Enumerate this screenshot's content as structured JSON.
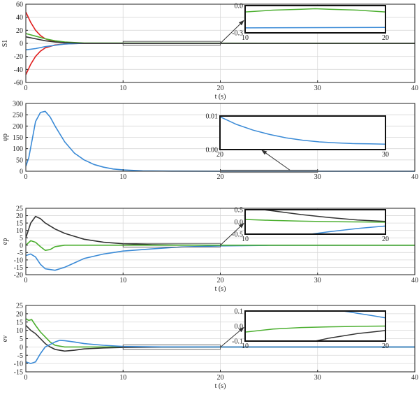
{
  "chart_data": [
    {
      "type": "line",
      "ylabel": "S1",
      "xlabel": "t (s)",
      "xlim": [
        0,
        40
      ],
      "ylim": [
        -60,
        60
      ],
      "xticks": [
        0,
        10,
        20,
        30,
        40
      ],
      "yticks": [
        -60,
        -40,
        -20,
        0,
        20,
        40,
        60
      ],
      "grid": true,
      "series": [
        {
          "color": "#e02020",
          "x": [
            0,
            0.5,
            1,
            1.5,
            2,
            3,
            4,
            5,
            6,
            40
          ],
          "y": [
            48,
            32,
            20,
            12,
            7,
            2.5,
            1,
            0.3,
            0,
            0
          ]
        },
        {
          "color": "#e02020",
          "x": [
            0,
            0.5,
            1,
            1.5,
            2,
            3,
            4,
            5,
            6,
            40
          ],
          "y": [
            -48,
            -32,
            -20,
            -12,
            -7,
            -2.5,
            -1,
            -0.3,
            0,
            0
          ]
        },
        {
          "color": "#3a8ad6",
          "x": [
            0,
            1,
            2,
            3,
            4,
            6,
            40
          ],
          "y": [
            -10,
            -8,
            -5,
            -3,
            -1,
            0,
            0
          ]
        },
        {
          "color": "#4caf30",
          "x": [
            0,
            1,
            2,
            3,
            4,
            6,
            40
          ],
          "y": [
            15,
            11,
            7,
            4,
            2,
            0.5,
            0
          ]
        },
        {
          "color": "#333333",
          "x": [
            0,
            1,
            2,
            3,
            4,
            6,
            40
          ],
          "y": [
            10,
            7,
            4,
            2,
            1,
            0,
            0
          ]
        }
      ],
      "inset": {
        "xrange": [
          10,
          20
        ],
        "yrange": [
          -0.3,
          0.0
        ],
        "xticks": [
          10,
          20
        ],
        "yticks": [
          0.0,
          -0.3
        ],
        "series": [
          {
            "color": "#4caf30",
            "x": [
              10,
              12,
              14,
              15,
              16,
              18,
              20
            ],
            "y": [
              -0.07,
              -0.05,
              -0.04,
              -0.035,
              -0.04,
              -0.05,
              -0.07
            ]
          },
          {
            "color": "#3a8ad6",
            "x": [
              10,
              20
            ],
            "y": [
              -0.245,
              -0.24
            ]
          }
        ]
      }
    },
    {
      "type": "line",
      "ylabel": "φp",
      "xlabel": "",
      "xlim": [
        0,
        40
      ],
      "ylim": [
        0,
        300
      ],
      "xticks": [
        0,
        10,
        20,
        30,
        40
      ],
      "yticks": [
        0,
        50,
        100,
        150,
        200,
        250,
        300
      ],
      "grid": true,
      "series": [
        {
          "color": "#3a8ad6",
          "x": [
            0,
            0.3,
            0.7,
            1,
            1.5,
            2,
            2.5,
            3,
            4,
            5,
            6,
            7,
            8,
            9,
            10,
            12,
            15,
            20,
            40
          ],
          "y": [
            22,
            60,
            150,
            220,
            260,
            265,
            240,
            200,
            130,
            80,
            50,
            30,
            18,
            10,
            6,
            2,
            0.5,
            0,
            0
          ]
        }
      ],
      "inset": {
        "xrange": [
          20,
          30
        ],
        "yrange": [
          0.0,
          0.01
        ],
        "xticks": [
          20,
          30
        ],
        "yticks": [
          0.01,
          0.0
        ],
        "series": [
          {
            "color": "#3a8ad6",
            "x": [
              20,
              21,
              22,
              23,
              24,
              25,
              26,
              27,
              28,
              29,
              30
            ],
            "y": [
              0.0098,
              0.0075,
              0.0058,
              0.0045,
              0.0035,
              0.0028,
              0.0023,
              0.002,
              0.0018,
              0.0017,
              0.0016
            ]
          }
        ]
      }
    },
    {
      "type": "line",
      "ylabel": "ep",
      "xlabel": "t (s)",
      "xlim": [
        0,
        40
      ],
      "ylim": [
        -20,
        25
      ],
      "xticks": [
        0,
        10,
        20,
        30,
        40
      ],
      "yticks": [
        -20,
        -15,
        -10,
        -5,
        0,
        5,
        10,
        15,
        20,
        25
      ],
      "grid": true,
      "series": [
        {
          "color": "#333333",
          "x": [
            0,
            0.5,
            1,
            1.5,
            2,
            3,
            4,
            5,
            6,
            8,
            10,
            13,
            16,
            20,
            25,
            40
          ],
          "y": [
            5,
            15,
            19.5,
            18,
            15,
            11,
            8,
            6,
            4,
            2,
            1,
            0.3,
            0.1,
            0,
            0,
            0
          ]
        },
        {
          "color": "#3a8ad6",
          "x": [
            0,
            0.5,
            1,
            1.5,
            2,
            3,
            4,
            5,
            6,
            8,
            10,
            13,
            16,
            20,
            25,
            40
          ],
          "y": [
            -7,
            -6,
            -8,
            -13,
            -16,
            -17,
            -15,
            -12,
            -9,
            -6,
            -4,
            -2.5,
            -1.2,
            -0.5,
            -0.1,
            0
          ]
        },
        {
          "color": "#4caf30",
          "x": [
            0,
            0.5,
            1,
            1.5,
            2,
            2.5,
            3,
            4,
            5,
            8,
            40
          ],
          "y": [
            0,
            3,
            2,
            -1,
            -3.5,
            -3,
            -1,
            0,
            0,
            0,
            0
          ]
        }
      ],
      "inset": {
        "xrange": [
          10,
          20
        ],
        "yrange": [
          -0.5,
          0.5
        ],
        "xticks": [
          10,
          20
        ],
        "yticks": [
          0.5,
          0.0,
          -0.5
        ],
        "series": [
          {
            "color": "#333333",
            "x": [
              10,
              12,
              14,
              16,
              18,
              20
            ],
            "y": [
              0.6,
              0.45,
              0.3,
              0.18,
              0.08,
              0.02
            ]
          },
          {
            "color": "#4caf30",
            "x": [
              10,
              12,
              14,
              16,
              18,
              20
            ],
            "y": [
              0.1,
              0.06,
              0.03,
              0.01,
              0,
              -0.01
            ]
          },
          {
            "color": "#3a8ad6",
            "x": [
              10,
              12,
              14,
              16,
              18,
              20
            ],
            "y": [
              -0.9,
              -0.72,
              -0.55,
              -0.4,
              -0.27,
              -0.17
            ]
          }
        ]
      }
    },
    {
      "type": "line",
      "ylabel": "ev",
      "xlabel": "t (s)",
      "xlim": [
        0,
        40
      ],
      "ylim": [
        -15,
        25
      ],
      "xticks": [
        0,
        10,
        20,
        30,
        40
      ],
      "yticks": [
        -15,
        -10,
        -5,
        0,
        5,
        10,
        15,
        20,
        25
      ],
      "grid": true,
      "series": [
        {
          "color": "#4caf30",
          "x": [
            0,
            0.3,
            0.6,
            1,
            1.5,
            2,
            2.5,
            3,
            4,
            5,
            6,
            8,
            40
          ],
          "y": [
            17,
            16,
            16.5,
            13,
            9,
            6,
            3,
            1,
            0,
            0,
            0,
            0,
            0
          ]
        },
        {
          "color": "#333333",
          "x": [
            0,
            0.5,
            1,
            1.5,
            2,
            2.5,
            3,
            4,
            5,
            6,
            8,
            10,
            14,
            20,
            40
          ],
          "y": [
            13,
            10,
            8,
            5,
            2,
            0,
            -1.5,
            -2.5,
            -2,
            -1.2,
            -0.6,
            -0.3,
            -0.1,
            0,
            0
          ]
        },
        {
          "color": "#3a8ad6",
          "x": [
            0,
            0.5,
            1,
            1.5,
            2,
            3,
            3.5,
            4,
            5,
            6,
            8,
            10,
            14,
            20,
            40
          ],
          "y": [
            -9,
            -10,
            -9,
            -4,
            0,
            3,
            4,
            3.8,
            3,
            2,
            1,
            0.3,
            0.05,
            0,
            0
          ]
        }
      ],
      "inset": {
        "xrange": [
          10,
          20
        ],
        "yrange": [
          -0.1,
          0.1
        ],
        "xticks": [
          10,
          20
        ],
        "yticks": [
          0.1,
          0.0,
          -0.1
        ],
        "series": [
          {
            "color": "#3a8ad6",
            "x": [
              16,
              17,
              18,
              19,
              20
            ],
            "y": [
              0.12,
              0.1,
              0.085,
              0.07,
              0.055
            ]
          },
          {
            "color": "#4caf30",
            "x": [
              10,
              12,
              14,
              16,
              18,
              20
            ],
            "y": [
              -0.04,
              -0.02,
              -0.01,
              -0.005,
              -0.002,
              0
            ]
          },
          {
            "color": "#333333",
            "x": [
              14,
              15,
              16,
              17,
              18,
              19,
              20
            ],
            "y": [
              -0.12,
              -0.1,
              -0.08,
              -0.065,
              -0.05,
              -0.04,
              -0.03
            ]
          }
        ]
      }
    }
  ]
}
